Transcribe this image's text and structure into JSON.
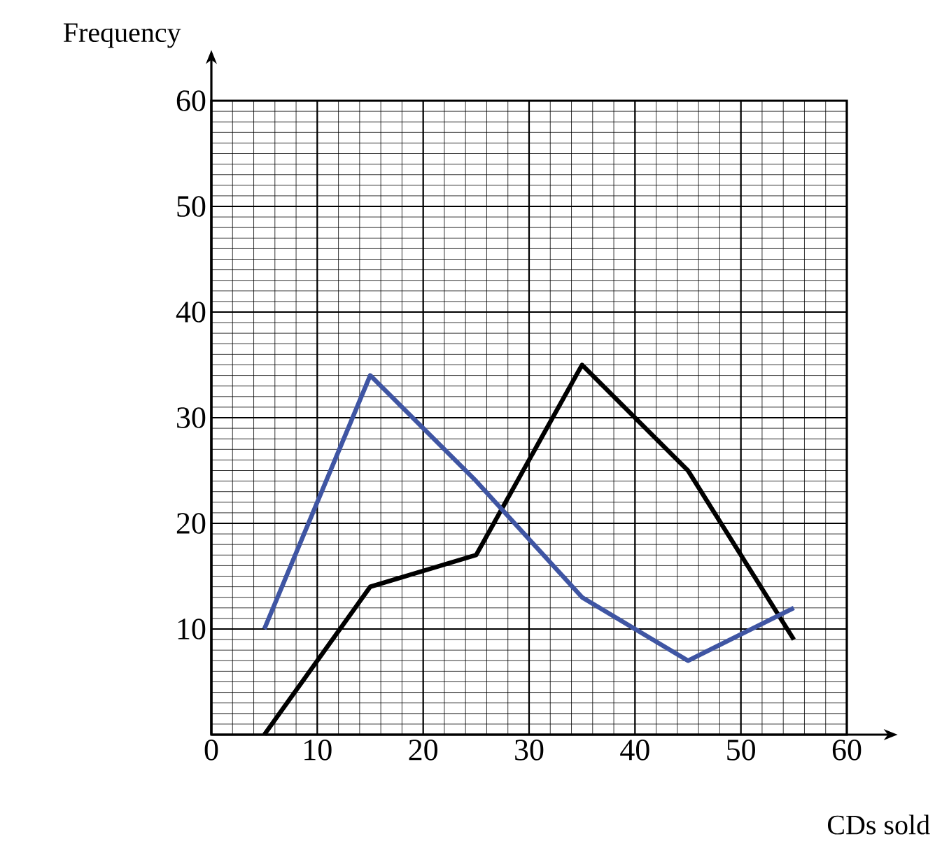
{
  "chart_data": {
    "type": "line",
    "xlabel": "CDs sold",
    "ylabel": "Frequency",
    "x": [
      5,
      15,
      25,
      35,
      45,
      55
    ],
    "series": [
      {
        "color": "#000000",
        "values": [
          0,
          14,
          17,
          35,
          25,
          9
        ]
      },
      {
        "color": "#3f55a3",
        "values": [
          10,
          34,
          24,
          13,
          7,
          12
        ]
      }
    ],
    "xlim": [
      0,
      60
    ],
    "ylim": [
      0,
      60
    ],
    "xticks": [
      0,
      10,
      20,
      30,
      40,
      50,
      60
    ],
    "yticks": [
      10,
      20,
      30,
      40,
      50,
      60
    ],
    "grid": true,
    "marker": "none",
    "line_style": "solid"
  }
}
